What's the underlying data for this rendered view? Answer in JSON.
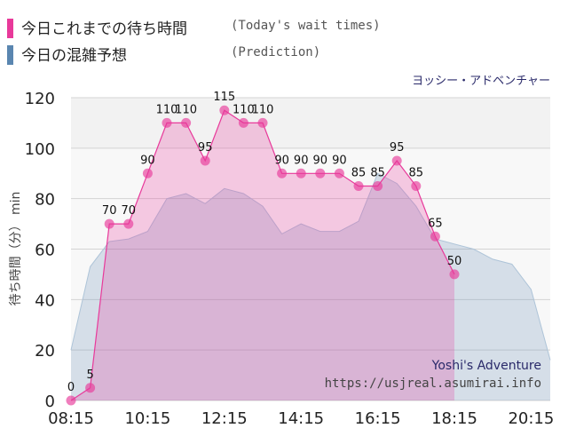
{
  "legend": {
    "today": {
      "name": "今日これまでの待ち時間",
      "english": "(Today's wait times)",
      "color": "#e8399a"
    },
    "prediction": {
      "name": "今日の混雑予想",
      "english": "(Prediction)",
      "color": "#5a86b0"
    }
  },
  "park_name": "ヨッシー・アドベンチャー",
  "credit": {
    "title": "Yoshi's Adventure",
    "url": "https://usjreal.asumirai.info"
  },
  "chart_data": {
    "type": "area",
    "ylabel_main": "待ち時間（分）",
    "ylabel_unit": "min",
    "xlabel": "",
    "ylim": [
      0,
      120
    ],
    "xlim": [
      "08:15",
      "20:45"
    ],
    "y_ticks": [
      0,
      20,
      40,
      60,
      80,
      100,
      120
    ],
    "x_ticks": [
      "08:15",
      "10:15",
      "12:15",
      "14:15",
      "16:15",
      "18:15",
      "20:15"
    ],
    "grid": "horizontal",
    "series": [
      {
        "name": "今日これまでの待ち時間",
        "color": "#e8399a",
        "points": [
          [
            "08:15",
            0
          ],
          [
            "08:45",
            5
          ],
          [
            "09:15",
            70
          ],
          [
            "09:45",
            70
          ],
          [
            "10:15",
            90
          ],
          [
            "10:45",
            110
          ],
          [
            "11:15",
            110
          ],
          [
            "11:45",
            95
          ],
          [
            "12:15",
            115
          ],
          [
            "12:45",
            110
          ],
          [
            "13:15",
            110
          ],
          [
            "13:45",
            90
          ],
          [
            "14:15",
            90
          ],
          [
            "14:45",
            90
          ],
          [
            "15:15",
            90
          ],
          [
            "15:45",
            85
          ],
          [
            "16:15",
            85
          ],
          [
            "16:45",
            95
          ],
          [
            "17:15",
            85
          ],
          [
            "17:45",
            65
          ],
          [
            "18:15",
            50
          ]
        ]
      },
      {
        "name": "今日の混雑予想",
        "color": "#5a86b0",
        "points": [
          [
            "08:15",
            20
          ],
          [
            "08:45",
            53
          ],
          [
            "09:15",
            63
          ],
          [
            "09:45",
            64
          ],
          [
            "10:15",
            67
          ],
          [
            "10:45",
            80
          ],
          [
            "11:15",
            82
          ],
          [
            "11:45",
            78
          ],
          [
            "12:15",
            84
          ],
          [
            "12:45",
            82
          ],
          [
            "13:15",
            77
          ],
          [
            "13:45",
            66
          ],
          [
            "14:15",
            70
          ],
          [
            "14:45",
            67
          ],
          [
            "15:15",
            67
          ],
          [
            "15:45",
            71
          ],
          [
            "16:15",
            90
          ],
          [
            "16:45",
            86
          ],
          [
            "17:15",
            77
          ],
          [
            "17:45",
            64
          ],
          [
            "18:15",
            62
          ],
          [
            "18:45",
            60
          ],
          [
            "19:15",
            56
          ],
          [
            "19:45",
            54
          ],
          [
            "20:15",
            44
          ],
          [
            "20:45",
            16
          ]
        ]
      }
    ]
  }
}
